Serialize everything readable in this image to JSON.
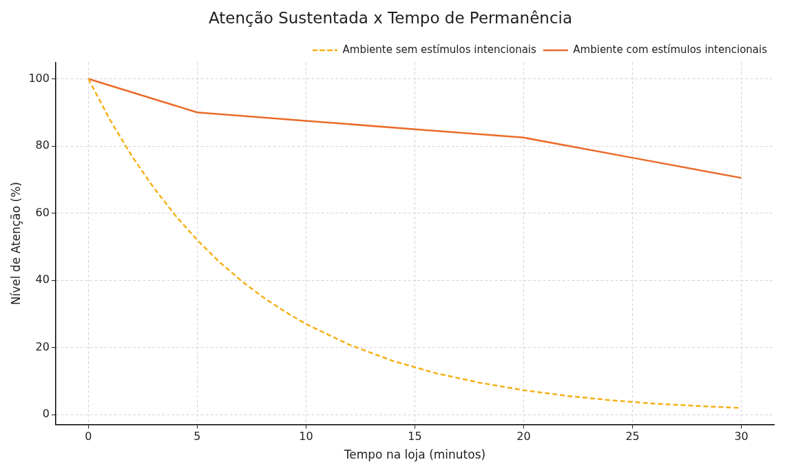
{
  "chart_data": {
    "type": "line",
    "title": "Atenção Sustentada x Tempo de Permanência",
    "xlabel": "Tempo na loja (minutos)",
    "ylabel": "Nível de Atenção (%)",
    "xlim": [
      -1.5,
      31.5
    ],
    "xticks": [
      0,
      5,
      10,
      15,
      20,
      25,
      30
    ],
    "ylim": [
      -2.9,
      104.9
    ],
    "yticks": [
      0,
      20,
      40,
      60,
      80,
      100
    ],
    "grid": true,
    "legend": "top right",
    "marker": "none",
    "series": [
      {
        "name": "Ambiente sem estímulos intencionais",
        "color": "#f5b015",
        "line_style": "dashed",
        "x": [
          0,
          1,
          2,
          3,
          4,
          5,
          6,
          7,
          8,
          9,
          10,
          12,
          14,
          16,
          18,
          20,
          22,
          24,
          26,
          28,
          30
        ],
        "values": [
          100,
          87.7,
          77,
          67.6,
          59.3,
          52,
          45.6,
          40,
          35.1,
          30.8,
          27,
          20.8,
          16,
          12.3,
          9.5,
          7.3,
          5.6,
          4.3,
          3.3,
          2.6,
          2
        ]
      },
      {
        "name": "Ambiente com estímulos intencionais",
        "color": "#eb6a28",
        "line_style": "solid",
        "x": [
          0,
          5,
          10,
          15,
          20,
          25,
          30
        ],
        "values": [
          100,
          90,
          87.5,
          85,
          82.5,
          76.5,
          70.5
        ]
      }
    ]
  }
}
